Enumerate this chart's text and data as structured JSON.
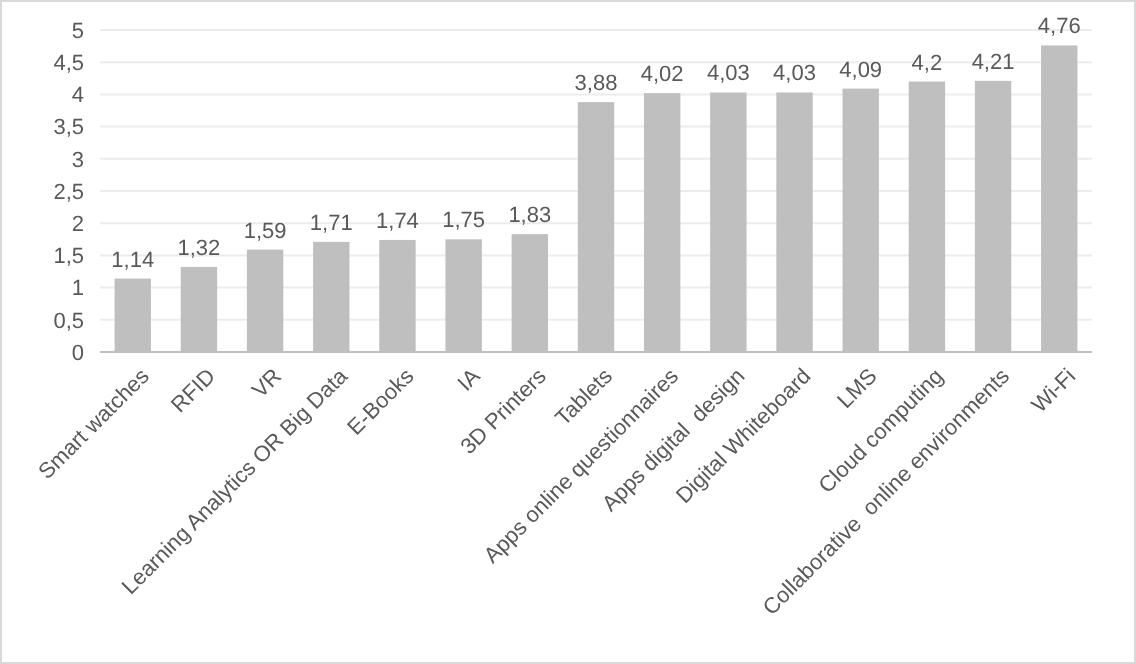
{
  "chart_data": {
    "type": "bar",
    "categories": [
      "Smart watches",
      "RFID",
      "VR",
      "Learning Analytics OR Big Data",
      "E-Books",
      "IA",
      "3D Printers",
      "Tablets",
      "Apps online questionnaires",
      "Apps digital  design",
      "Digital Whiteboard",
      "LMS",
      "Cloud computing",
      "Collaborative  online environments",
      "Wi-Fi"
    ],
    "values": [
      1.14,
      1.32,
      1.59,
      1.71,
      1.74,
      1.75,
      1.83,
      3.88,
      4.02,
      4.03,
      4.03,
      4.09,
      4.2,
      4.21,
      4.76
    ],
    "value_labels": [
      "1,14",
      "1,32",
      "1,59",
      "1,71",
      "1,74",
      "1,75",
      "1,83",
      "3,88",
      "4,02",
      "4,03",
      "4,03",
      "4,09",
      "4,2",
      "4,21",
      "4,76"
    ],
    "color": "#bfbfbf",
    "ylim": [
      0,
      5
    ],
    "yticks": [
      0,
      {
        "value": 0.5,
        "label": "0,5"
      },
      1,
      {
        "value": 1.5,
        "label": "1,5"
      },
      2,
      {
        "value": 2.5,
        "label": "2,5"
      },
      3,
      {
        "value": 3.5,
        "label": "3,5"
      },
      4,
      {
        "value": 4.5,
        "label": "4,5"
      },
      5
    ],
    "grid": "y"
  }
}
